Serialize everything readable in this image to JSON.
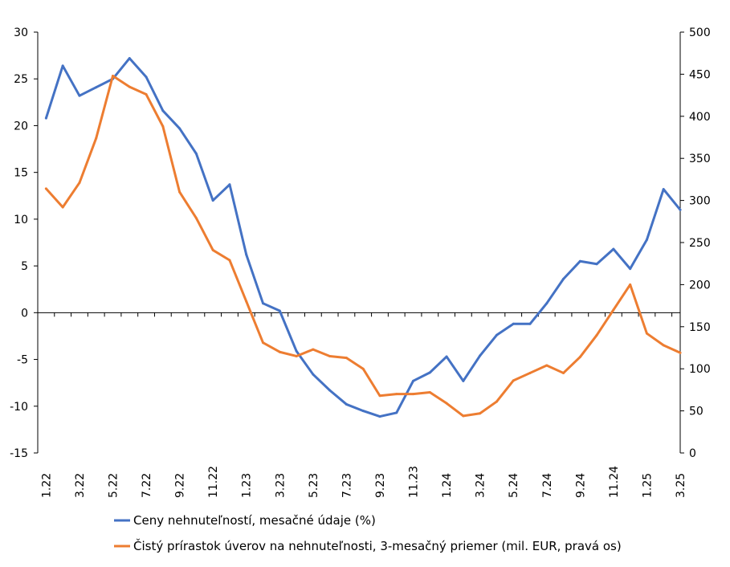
{
  "chart_data": {
    "type": "line",
    "title": "",
    "xlabel": "",
    "ylabel": "",
    "grid": false,
    "legend_position": "bottom",
    "x_tick_labels": [
      "1.22",
      "3.22",
      "5.22",
      "7.22",
      "9.22",
      "11.22",
      "1.23",
      "3.23",
      "5.23",
      "7.23",
      "9.23",
      "11.23",
      "1.24",
      "3.24",
      "5.24",
      "7.24",
      "9.24",
      "11.24",
      "1.25",
      "3.25"
    ],
    "y_left": {
      "min": -15,
      "max": 30,
      "step": 5,
      "ticks": [
        "30",
        "25",
        "20",
        "15",
        "10",
        "5",
        "0",
        "-5",
        "-10",
        "-15"
      ]
    },
    "y_right": {
      "min": 0,
      "max": 500,
      "step": 50,
      "ticks": [
        "500",
        "450",
        "400",
        "350",
        "300",
        "250",
        "200",
        "150",
        "100",
        "50",
        "0"
      ]
    },
    "series": [
      {
        "name": "Ceny nehnuteľností, mesačné údaje (%)",
        "axis": "left",
        "color": "#4472C4",
        "values": [
          20.8,
          26.4,
          23.2,
          24.1,
          25.0,
          27.2,
          25.2,
          21.6,
          19.7,
          17.0,
          12.0,
          13.7,
          6.2,
          1.0,
          0.2,
          -4.1,
          -6.6,
          -8.3,
          -9.8,
          -10.5,
          -11.1,
          -10.7,
          -7.3,
          -6.4,
          -4.7,
          -7.3,
          -4.6,
          -2.4,
          -1.2,
          -1.2,
          1.0,
          3.6,
          5.5,
          5.2,
          6.8,
          4.7,
          7.8,
          13.2,
          11.0
        ]
      },
      {
        "name": "Čistý prírastok úverov na nehnuteľnosti, 3-mesačný priemer (mil. EUR, pravá os)",
        "axis": "right",
        "color": "#ED7D31",
        "values": [
          314,
          292,
          321,
          374,
          448,
          435,
          426,
          388,
          310,
          279,
          241,
          229,
          180,
          131,
          120,
          115,
          123,
          115,
          113,
          100,
          68,
          70,
          70,
          72,
          59,
          44,
          47,
          61,
          86,
          95,
          104,
          95,
          114,
          140,
          170,
          200,
          142,
          128,
          119
        ]
      }
    ]
  }
}
